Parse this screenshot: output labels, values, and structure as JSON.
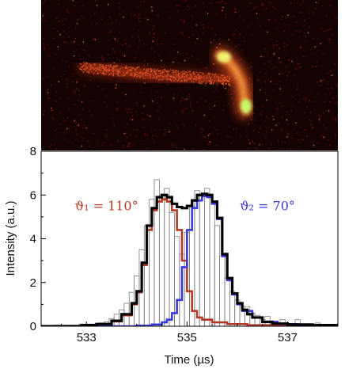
{
  "chart_data": {
    "type": "line",
    "title": "",
    "xlabel": "Time (µs)",
    "ylabel": "Intensity (a.u.)",
    "xlim": [
      532.1,
      538.0
    ],
    "ylim": [
      0,
      8
    ],
    "x_ticks": [
      "533",
      "535",
      "537"
    ],
    "x_tick_values": [
      533,
      535,
      537
    ],
    "y_ticks": [
      "0",
      "2",
      "4",
      "6",
      "8"
    ],
    "y_tick_values": [
      0,
      2,
      4,
      6,
      8
    ],
    "grid": false,
    "legend": "none",
    "inset_image": "detector-image",
    "inset_colors": {
      "background": "#150303",
      "track": "#ff5020",
      "hot": "#f7ff7a"
    },
    "annotations": [
      {
        "text": "ϑ₁ = 110°",
        "color": "#b03a26",
        "x": 533.4,
        "y": 5.3
      },
      {
        "text": "ϑ₂ = 70°",
        "color": "#3a3ad8",
        "x": 536.6,
        "y": 5.3
      }
    ],
    "histogram": {
      "bin_width": 0.1,
      "color": "#7a7a7a",
      "x": [
        532.3,
        532.4,
        532.5,
        532.6,
        532.7,
        532.8,
        532.9,
        533.0,
        533.1,
        533.2,
        533.3,
        533.4,
        533.5,
        533.6,
        533.7,
        533.8,
        533.9,
        534.0,
        534.1,
        534.2,
        534.3,
        534.4,
        534.5,
        534.6,
        534.7,
        534.8,
        534.9,
        535.0,
        535.1,
        535.2,
        535.3,
        535.4,
        535.5,
        535.6,
        535.7,
        535.8,
        535.9,
        536.0,
        536.1,
        536.2,
        536.3,
        536.4,
        536.5,
        536.6,
        536.7,
        536.8,
        536.9,
        537.0,
        537.1,
        537.2,
        537.3,
        537.4,
        537.5,
        537.6,
        537.7
      ],
      "values": [
        0.0,
        0.05,
        0.0,
        0.05,
        0.05,
        0.05,
        0.1,
        0.05,
        0.1,
        0.1,
        0.15,
        0.2,
        0.35,
        0.55,
        0.75,
        1.05,
        1.55,
        2.3,
        3.5,
        4.6,
        5.8,
        6.7,
        6.0,
        6.3,
        5.2,
        4.1,
        3.3,
        4.3,
        5.5,
        6.2,
        6.0,
        6.3,
        5.6,
        4.6,
        3.2,
        2.2,
        1.6,
        1.2,
        0.9,
        0.9,
        0.6,
        0.5,
        0.3,
        0.45,
        0.1,
        0.05,
        0.3,
        0.1,
        0.05,
        0.3,
        0.1,
        0.0,
        0.05,
        0.15,
        0.0
      ]
    },
    "series": [
      {
        "name": "",
        "color": "#000000",
        "x": [
          532.1,
          532.5,
          532.9,
          533.2,
          533.5,
          533.7,
          533.9,
          534.0,
          534.1,
          534.2,
          534.3,
          534.4,
          534.5,
          534.6,
          534.7,
          534.8,
          534.9,
          535.0,
          535.1,
          535.2,
          535.3,
          535.4,
          535.5,
          535.6,
          535.7,
          535.8,
          535.9,
          536.0,
          536.1,
          536.2,
          536.3,
          536.5,
          536.7,
          537.0,
          537.5,
          538.0
        ],
        "values": [
          0.0,
          0.0,
          0.05,
          0.1,
          0.25,
          0.55,
          1.05,
          1.6,
          2.9,
          4.6,
          5.4,
          5.9,
          6.0,
          5.9,
          5.6,
          5.45,
          5.4,
          5.5,
          5.75,
          6.0,
          6.05,
          6.0,
          5.7,
          4.95,
          3.3,
          2.2,
          1.5,
          1.05,
          0.75,
          0.55,
          0.4,
          0.2,
          0.12,
          0.08,
          0.05,
          0.03
        ]
      },
      {
        "name": "",
        "color": "#b03a26",
        "x": [
          532.1,
          532.5,
          532.9,
          533.2,
          533.5,
          533.7,
          533.9,
          534.0,
          534.1,
          534.2,
          534.3,
          534.4,
          534.5,
          534.6,
          534.7,
          534.8,
          534.9,
          535.0,
          535.1,
          535.2,
          535.3,
          535.5,
          535.8,
          536.2,
          537.0,
          538.0
        ],
        "values": [
          0.0,
          0.0,
          0.05,
          0.1,
          0.22,
          0.5,
          1.0,
          1.55,
          2.8,
          4.4,
          5.3,
          5.7,
          5.8,
          5.7,
          5.3,
          4.4,
          3.0,
          1.6,
          0.7,
          0.4,
          0.3,
          0.18,
          0.1,
          0.05,
          0.02,
          0.0
        ]
      },
      {
        "name": "",
        "color": "#3a3ad8",
        "x": [
          532.1,
          533.5,
          534.0,
          534.3,
          534.5,
          534.6,
          534.7,
          534.8,
          534.9,
          535.0,
          535.1,
          535.2,
          535.3,
          535.4,
          535.5,
          535.6,
          535.7,
          535.8,
          535.9,
          536.0,
          536.1,
          536.3,
          536.5,
          536.8,
          537.2,
          538.0
        ],
        "values": [
          0.0,
          0.0,
          0.03,
          0.08,
          0.18,
          0.3,
          0.6,
          1.2,
          2.7,
          4.4,
          5.4,
          5.75,
          5.95,
          5.9,
          5.6,
          4.9,
          3.2,
          2.1,
          1.45,
          1.0,
          0.7,
          0.4,
          0.2,
          0.1,
          0.05,
          0.02
        ]
      }
    ]
  }
}
